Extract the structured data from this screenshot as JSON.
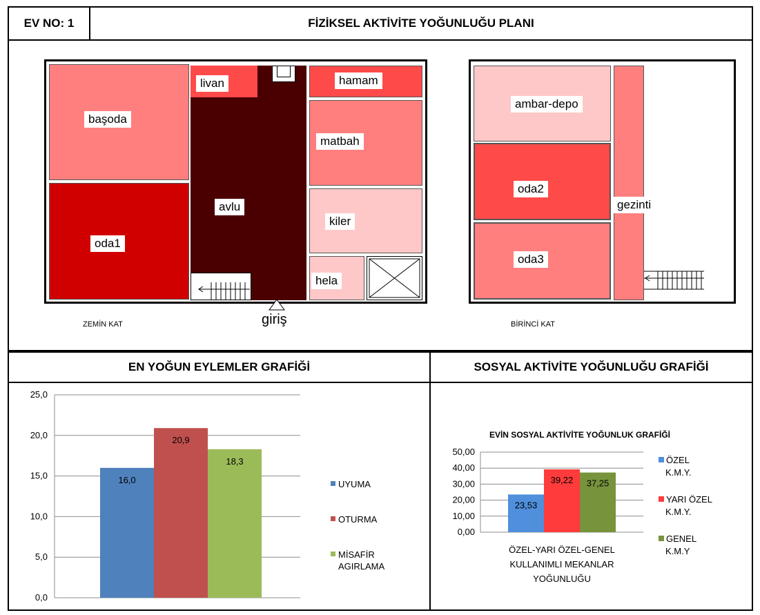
{
  "header": {
    "ev_no": "EV NO: 1",
    "title": "FİZİKSEL AKTİVİTE YOĞUNLUĞU PLANI"
  },
  "ground_floor": {
    "caption": "ZEMİN KAT",
    "entrance": "giriş",
    "rooms": {
      "basoda": "başoda",
      "oda1": "oda1",
      "livan": "livan",
      "avlu": "avlu",
      "hamam": "hamam",
      "matbah": "matbah",
      "kiler": "kiler",
      "hela": "hela"
    }
  },
  "first_floor": {
    "caption": "BİRİNCİ KAT",
    "rooms": {
      "ambar": "ambar-depo",
      "oda2": "oda2",
      "oda3": "oda3",
      "gezinti": "gezinti"
    }
  },
  "section_titles": {
    "left": "EN YOĞUN EYLEMLER GRAFİĞİ",
    "right": "SOSYAL AKTİVİTE YOĞUNLUĞU GRAFİĞİ"
  },
  "colors": {
    "dark": "#4a0000",
    "strong": "#d10000",
    "medium": "#ff4a4a",
    "light": "#ff7f7f",
    "pale": "#ffc8c8"
  },
  "chart_data": [
    {
      "type": "bar",
      "title": "",
      "categories": [
        ""
      ],
      "series": [
        {
          "name": "UYUMA",
          "values": [
            16.0
          ],
          "label": "16,0",
          "color": "#4f81bd"
        },
        {
          "name": "OTURMA",
          "values": [
            20.9
          ],
          "label": "20,9",
          "color": "#c0504d"
        },
        {
          "name": "MİSAFİR AGIRLAMA",
          "values": [
            18.3
          ],
          "label": "18,3",
          "color": "#9bbb59"
        }
      ],
      "ylim": [
        0,
        25
      ],
      "yticks": [
        "0,0",
        "5,0",
        "10,0",
        "15,0",
        "20,0",
        "25,0"
      ],
      "grid": true,
      "legend": "right"
    },
    {
      "type": "bar",
      "title": "EVİN SOSYAL AKTİVİTE YOĞUNLUK GRAFİĞİ",
      "xlabel": "ÖZEL-YARI ÖZEL-GENEL KULLANIMLI MEKANLAR YOĞUNLUĞU",
      "categories": [
        ""
      ],
      "series": [
        {
          "name": "ÖZEL K.M.Y.",
          "values": [
            23.53
          ],
          "label": "23,53",
          "color": "#4f8fdc"
        },
        {
          "name": "YARI ÖZEL K.M.Y.",
          "values": [
            39.22
          ],
          "label": "39,22",
          "color": "#ff3b3b"
        },
        {
          "name": "GENEL K.M.Y",
          "values": [
            37.25
          ],
          "label": "37,25",
          "color": "#77933c"
        }
      ],
      "ylim": [
        0,
        50
      ],
      "yticks": [
        "0,00",
        "10,00",
        "20,00",
        "30,00",
        "40,00",
        "50,00"
      ],
      "grid": true,
      "legend": "right"
    }
  ]
}
